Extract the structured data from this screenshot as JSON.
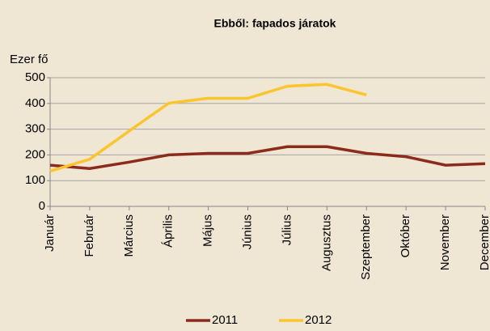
{
  "chart_data": {
    "type": "line",
    "title": "Ebből: fapados járatok",
    "y_label": "Ezer fő",
    "categories": [
      "Január",
      "Február",
      "Március",
      "Április",
      "Május",
      "Június",
      "Július",
      "Augusztus",
      "Szeptember",
      "Október",
      "November",
      "December"
    ],
    "series": [
      {
        "name": "2011",
        "color": "#8b2b1c",
        "values": [
          160,
          147,
          172,
          200,
          206,
          206,
          232,
          232,
          206,
          193,
          160,
          166
        ]
      },
      {
        "name": "2012",
        "color": "#fbc52e",
        "values": [
          137,
          183,
          293,
          401,
          420,
          420,
          467,
          474,
          433,
          null,
          null,
          null
        ]
      }
    ],
    "ylim": [
      0,
      500
    ],
    "yticks": [
      0,
      100,
      200,
      300,
      400,
      500
    ],
    "grid": true,
    "legend": "bottom"
  }
}
